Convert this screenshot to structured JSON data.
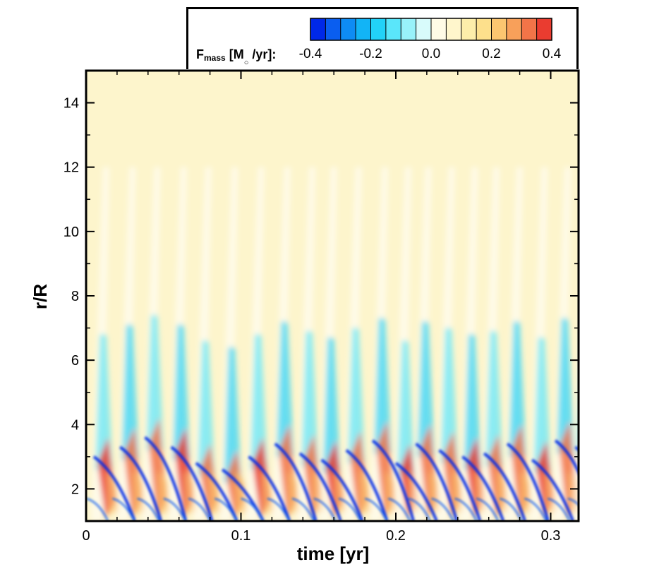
{
  "chart_data": {
    "type": "heatmap",
    "title": "",
    "xlabel": "time [yr]",
    "ylabel": "r/R",
    "xlim": [
      0,
      0.318
    ],
    "ylim": [
      1,
      15
    ],
    "x_ticks": [
      "0",
      "0.1",
      "0.2",
      "0.3"
    ],
    "x_tick_values": [
      0,
      0.1,
      0.2,
      0.3
    ],
    "y_ticks": [
      "2",
      "4",
      "6",
      "8",
      "10",
      "12",
      "14"
    ],
    "y_tick_values": [
      2,
      4,
      6,
      8,
      10,
      12,
      14
    ],
    "colorbar": {
      "label_main": "F",
      "label_sub": "mass",
      "label_units_pre": " [M",
      "label_units_sub": "○",
      "label_units_post": " /yr]:",
      "min": -0.4,
      "max": 0.4,
      "tick_labels": [
        "-0.4",
        "-0.2",
        "0.0",
        "0.2",
        "0.4"
      ],
      "tick_values": [
        -0.4,
        -0.2,
        0.0,
        0.2,
        0.4
      ],
      "colors": [
        "#0028e8",
        "#0a5ef0",
        "#0e8cf4",
        "#12b4f6",
        "#22d2f8",
        "#5ae6fa",
        "#98f2fa",
        "#d8fbfb",
        "#fffbe6",
        "#fff6cc",
        "#fdeeaa",
        "#fde08c",
        "#fcc670",
        "#f8a05a",
        "#f27448",
        "#ea3c30"
      ]
    },
    "background_color": "#fdf5cc",
    "bursts_time": [
      0.005,
      0.022,
      0.038,
      0.055,
      0.071,
      0.088,
      0.105,
      0.122,
      0.138,
      0.152,
      0.168,
      0.185,
      0.2,
      0.213,
      0.228,
      0.243,
      0.257,
      0.272,
      0.288,
      0.303,
      0.316
    ],
    "outflow_front_r": [
      3.0,
      3.3,
      3.6,
      3.3,
      2.8,
      2.6,
      3.0,
      3.4,
      3.1,
      2.9,
      3.2,
      3.5,
      2.8,
      3.4,
      3.2,
      3.0,
      3.1,
      3.4,
      2.9,
      3.5,
      3.3
    ]
  }
}
